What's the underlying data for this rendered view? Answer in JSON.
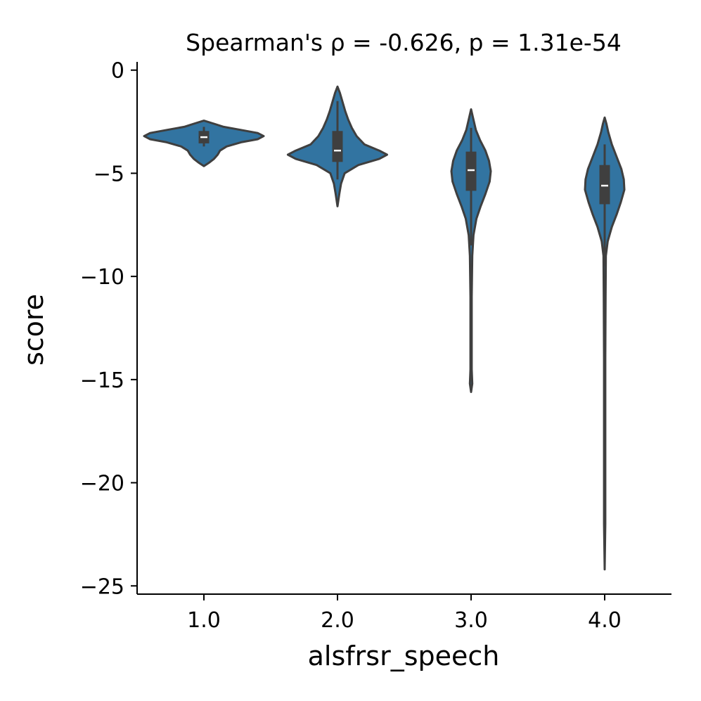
{
  "chart_data": {
    "type": "violin",
    "title": "Spearman's ρ = -0.626, p = 1.31e-54",
    "xlabel": "alsfrsr_speech",
    "ylabel": "score",
    "categories": [
      "1.0",
      "2.0",
      "3.0",
      "4.0"
    ],
    "ylim": [
      -25.4,
      0.4
    ],
    "yticks": [
      0,
      -5,
      -10,
      -15,
      -20,
      -25
    ],
    "ytick_labels": [
      "0",
      "−5",
      "−10",
      "−15",
      "−20",
      "−25"
    ],
    "grid": false,
    "violins": [
      {
        "category": "1.0",
        "min": -4.65,
        "max": -2.45,
        "q1": -3.55,
        "median": -3.25,
        "q3": -2.95,
        "whisker_low": -3.7,
        "whisker_high": -2.75,
        "density": [
          [
            -4.65,
            0.0
          ],
          [
            -4.5,
            0.08
          ],
          [
            -4.3,
            0.17
          ],
          [
            -4.1,
            0.23
          ],
          [
            -3.9,
            0.27
          ],
          [
            -3.7,
            0.38
          ],
          [
            -3.5,
            0.62
          ],
          [
            -3.35,
            0.9
          ],
          [
            -3.2,
            1.0
          ],
          [
            -3.05,
            0.9
          ],
          [
            -2.9,
            0.62
          ],
          [
            -2.75,
            0.33
          ],
          [
            -2.6,
            0.17
          ],
          [
            -2.45,
            0.0
          ]
        ]
      },
      {
        "category": "2.0",
        "min": -6.6,
        "max": -0.8,
        "q1": -4.45,
        "median": -3.9,
        "q3": -2.95,
        "whisker_low": -5.3,
        "whisker_high": -1.5,
        "density": [
          [
            -6.6,
            0.0
          ],
          [
            -6.0,
            0.03
          ],
          [
            -5.5,
            0.06
          ],
          [
            -5.0,
            0.12
          ],
          [
            -4.6,
            0.35
          ],
          [
            -4.3,
            0.7
          ],
          [
            -4.1,
            0.83
          ],
          [
            -3.9,
            0.7
          ],
          [
            -3.6,
            0.45
          ],
          [
            -3.2,
            0.32
          ],
          [
            -2.8,
            0.24
          ],
          [
            -2.4,
            0.18
          ],
          [
            -2.0,
            0.13
          ],
          [
            -1.5,
            0.08
          ],
          [
            -1.1,
            0.04
          ],
          [
            -0.8,
            0.0
          ]
        ]
      },
      {
        "category": "3.0",
        "min": -15.6,
        "max": -1.9,
        "q1": -5.85,
        "median": -4.85,
        "q3": -3.95,
        "whisker_low": -8.5,
        "whisker_high": -2.8,
        "density": [
          [
            -15.6,
            0.0
          ],
          [
            -15.2,
            0.02
          ],
          [
            -14.5,
            0.01
          ],
          [
            -13.0,
            0.01
          ],
          [
            -11.0,
            0.01
          ],
          [
            -9.0,
            0.02
          ],
          [
            -8.0,
            0.04
          ],
          [
            -7.2,
            0.09
          ],
          [
            -6.6,
            0.16
          ],
          [
            -6.0,
            0.24
          ],
          [
            -5.4,
            0.31
          ],
          [
            -4.9,
            0.33
          ],
          [
            -4.4,
            0.3
          ],
          [
            -3.9,
            0.24
          ],
          [
            -3.4,
            0.15
          ],
          [
            -2.9,
            0.08
          ],
          [
            -2.4,
            0.04
          ],
          [
            -1.9,
            0.0
          ]
        ]
      },
      {
        "category": "4.0",
        "min": -24.2,
        "max": -2.3,
        "q1": -6.5,
        "median": -5.6,
        "q3": -4.6,
        "whisker_low": -9.5,
        "whisker_high": -3.6,
        "density": [
          [
            -24.2,
            0.0
          ],
          [
            -22.0,
            0.01
          ],
          [
            -18.0,
            0.01
          ],
          [
            -14.0,
            0.01
          ],
          [
            -11.0,
            0.015
          ],
          [
            -9.0,
            0.02
          ],
          [
            -8.3,
            0.05
          ],
          [
            -7.6,
            0.12
          ],
          [
            -7.0,
            0.2
          ],
          [
            -6.4,
            0.27
          ],
          [
            -5.8,
            0.33
          ],
          [
            -5.3,
            0.32
          ],
          [
            -4.8,
            0.28
          ],
          [
            -4.2,
            0.2
          ],
          [
            -3.6,
            0.12
          ],
          [
            -3.0,
            0.06
          ],
          [
            -2.6,
            0.03
          ],
          [
            -2.3,
            0.0
          ]
        ]
      }
    ],
    "colors": {
      "fill": "#3274a1",
      "edge": "#3f3f3f",
      "box": "#3f3f3f",
      "median": "#ffffff",
      "axis": "#000000"
    }
  }
}
